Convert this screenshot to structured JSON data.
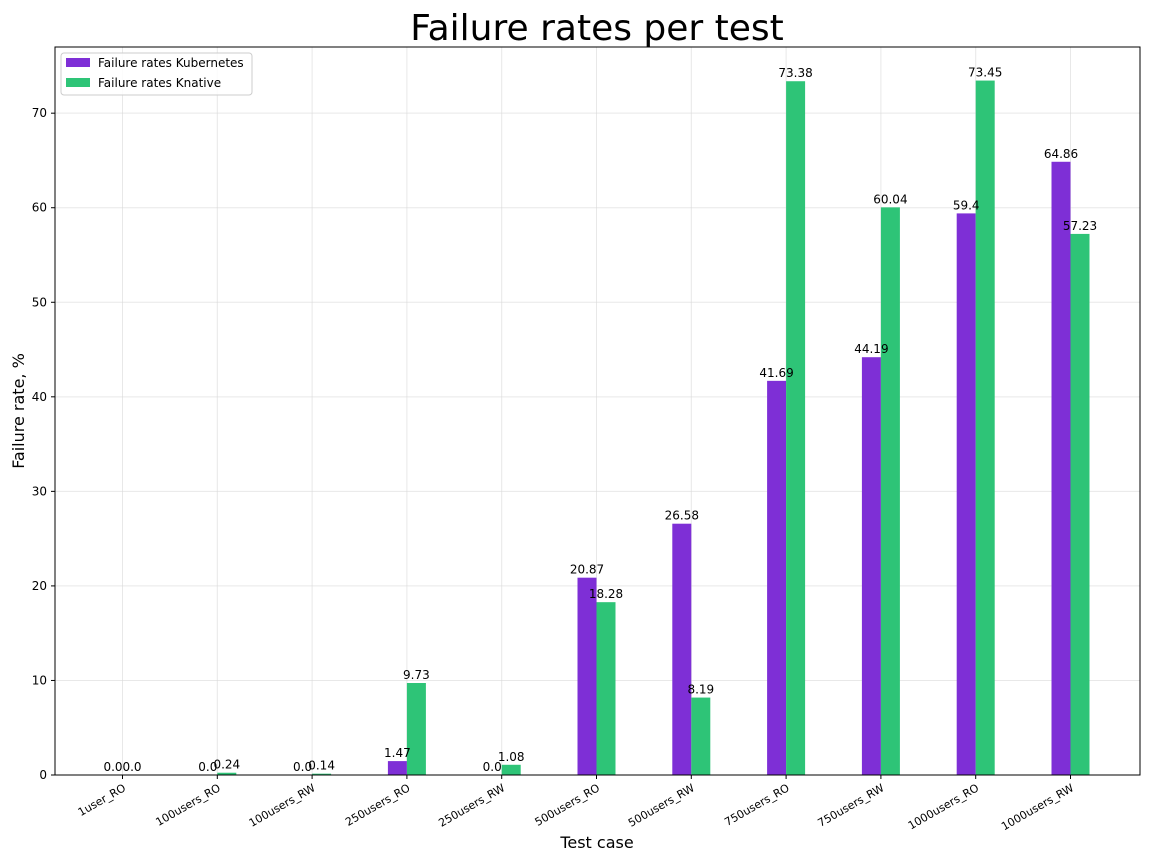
{
  "chart_data": {
    "type": "bar",
    "title": "Failure rates per test",
    "xlabel": "Test case",
    "ylabel": "Failure rate, %",
    "ylim": [
      0,
      77
    ],
    "yticks": [
      0,
      10,
      20,
      30,
      40,
      50,
      60,
      70
    ],
    "grid": true,
    "legend_placement": "top-left",
    "categories": [
      "1user_RO",
      "100users_RO",
      "100users_RW",
      "250users_RO",
      "250users_RW",
      "500users_RO",
      "500users_RW",
      "750users_RO",
      "750users_RW",
      "1000users_RO",
      "1000users_RW"
    ],
    "series": [
      {
        "name": "Failure rates Kubernetes",
        "color": "#7e2fd6",
        "values": [
          0.0,
          0.0,
          0.0,
          1.47,
          0.0,
          20.87,
          26.58,
          41.69,
          44.19,
          59.4,
          64.86
        ],
        "labels": [
          "0.0",
          "0.0",
          "0.0",
          "1.47",
          "0.0",
          "20.87",
          "26.58",
          "41.69",
          "44.19",
          "59.4",
          "64.86"
        ]
      },
      {
        "name": "Failure rates Knative",
        "color": "#2ec477",
        "values": [
          0.0,
          0.24,
          0.14,
          9.73,
          1.08,
          18.28,
          8.19,
          73.38,
          60.04,
          73.45,
          57.23
        ],
        "labels": [
          "0.0",
          "0.24",
          "0.14",
          "9.73",
          "1.08",
          "18.28",
          "8.19",
          "73.38",
          "60.04",
          "73.45",
          "57.23"
        ]
      }
    ]
  }
}
